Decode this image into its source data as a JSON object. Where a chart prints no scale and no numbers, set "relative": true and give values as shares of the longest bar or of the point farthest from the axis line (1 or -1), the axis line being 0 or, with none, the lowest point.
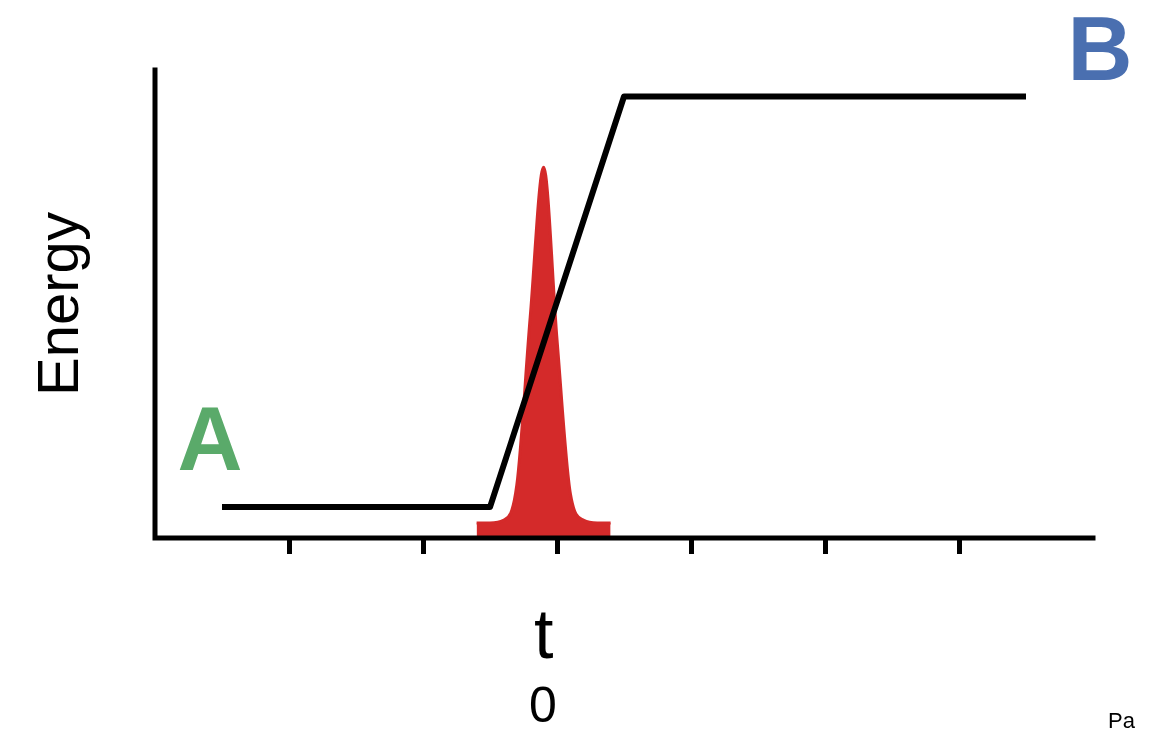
{
  "chart_data": {
    "type": "line",
    "relative": true,
    "ylabel": "Energy",
    "xlabel": "t",
    "legend": false,
    "grid": false,
    "marker": "none",
    "categories": [
      null,
      null,
      null,
      null,
      null,
      null,
      null,
      null,
      null,
      null,
      null,
      null,
      null,
      null,
      null,
      null,
      null,
      null,
      null,
      null,
      null,
      null,
      null,
      null,
      null,
      null,
      null,
      null,
      null,
      null,
      null,
      null,
      null,
      null,
      null,
      null,
      null,
      null,
      null,
      null,
      null,
      null,
      null,
      null,
      null,
      null,
      null,
      null,
      null,
      null,
      null,
      null,
      null,
      null,
      null,
      null,
      null,
      null,
      null,
      null,
      null,
      null,
      null,
      null,
      null,
      null,
      null,
      null,
      null,
      null,
      null
    ],
    "series": [
      {
        "type": "line",
        "color": "#000000",
        "values": [
          null,
          null,
          null,
          null,
          null,
          0.07,
          null,
          null,
          null,
          null,
          null,
          null,
          null,
          null,
          null,
          null,
          null,
          null,
          null,
          null,
          null,
          null,
          null,
          null,
          null,
          0.07,
          null,
          null,
          null,
          null,
          null,
          null,
          null,
          null,
          null,
          1,
          null,
          null,
          null,
          null,
          null,
          null,
          null,
          null,
          null,
          null,
          null,
          null,
          null,
          null,
          null,
          null,
          null,
          null,
          null,
          null,
          null,
          null,
          null,
          null,
          null,
          null,
          null,
          null,
          null,
          1,
          null,
          null,
          null,
          null,
          null
        ]
      },
      {
        "type": "area",
        "color": "#d42a2a",
        "values": [
          null,
          null,
          null,
          null,
          null,
          null,
          null,
          null,
          null,
          null,
          null,
          null,
          null,
          null,
          null,
          null,
          null,
          null,
          null,
          null,
          null,
          null,
          null,
          null,
          0.034,
          0.034,
          0.04,
          0.12,
          0.5,
          0.84,
          0.45,
          0.1,
          0.04,
          0.034,
          0.034,
          null,
          null,
          null,
          null,
          null,
          null,
          null,
          null,
          null,
          null,
          null,
          null,
          null,
          null,
          null,
          null,
          null,
          null,
          null,
          null,
          null,
          null,
          null,
          null,
          null,
          null,
          null,
          null,
          null,
          null,
          null,
          null,
          null,
          null,
          null,
          null
        ]
      }
    ],
    "annotations": [
      "A",
      "B",
      "0",
      "Pa"
    ]
  }
}
